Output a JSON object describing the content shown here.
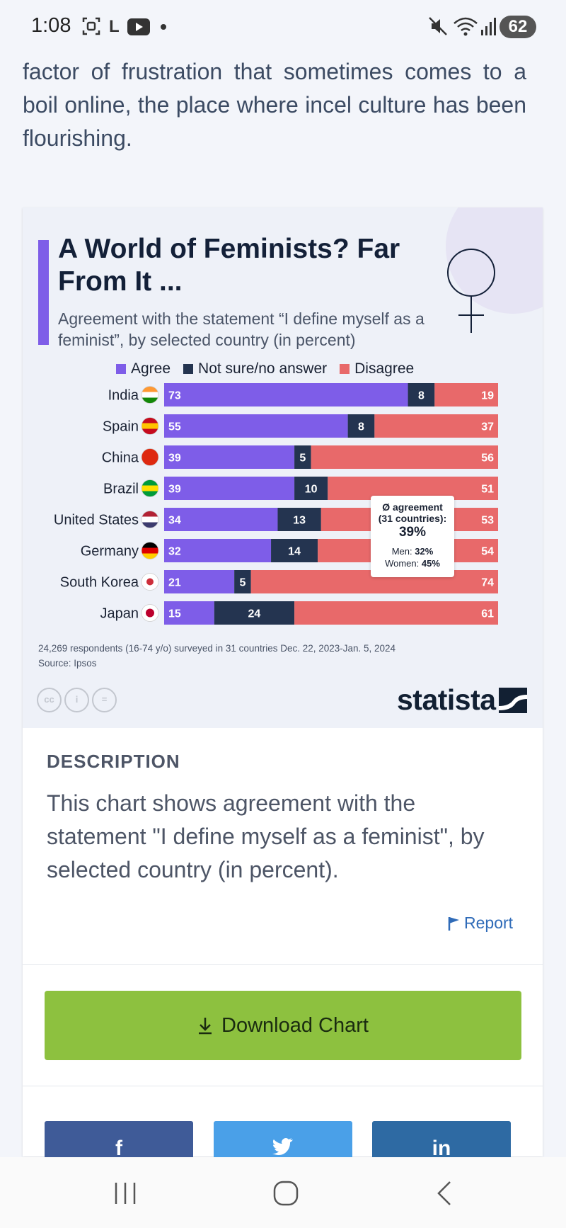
{
  "status_bar": {
    "time": "1:08",
    "battery": "62",
    "letter_icon": "L"
  },
  "article": {
    "text": "factor of frustration that sometimes comes to a boil online, the place where incel culture has been flourishing."
  },
  "infographic": {
    "title": "A World of Feminists? Far From It ...",
    "subtitle": "Agreement with the statement “I define myself as a feminist”, by selected country (in percent)",
    "callout": {
      "label": "Ø agreement",
      "sub": "(31 countries):",
      "value": "39%",
      "men_label": "Men:",
      "men_value": "32%",
      "women_label": "Women:",
      "women_value": "45%"
    },
    "footnote_1": "24,269 respondents (16-74 y/o) surveyed in 31 countries Dec. 22, 2023-Jan. 5, 2024",
    "footnote_2": "Source: Ipsos",
    "cc_icons": [
      "cc",
      "i",
      "="
    ],
    "logo_text": "statista"
  },
  "chart_data": {
    "type": "bar",
    "orientation": "horizontal",
    "stacked": true,
    "title": "A World of Feminists? Far From It ...",
    "subtitle": "Agreement with the statement “I define myself as a feminist”, by selected country (in percent)",
    "categories": [
      "India",
      "Spain",
      "China",
      "Brazil",
      "United States",
      "Germany",
      "South Korea",
      "Japan"
    ],
    "series": [
      {
        "name": "Agree",
        "color": "#7e5de8",
        "values": [
          73,
          55,
          39,
          39,
          34,
          32,
          21,
          15
        ]
      },
      {
        "name": "Not sure/no answer",
        "color": "#243450",
        "values": [
          8,
          8,
          5,
          10,
          13,
          14,
          5,
          24
        ]
      },
      {
        "name": "Disagree",
        "color": "#e8696a",
        "values": [
          19,
          37,
          56,
          51,
          53,
          54,
          74,
          61
        ]
      }
    ],
    "xlim": [
      0,
      100
    ],
    "legend": "top"
  },
  "description": {
    "heading": "DESCRIPTION",
    "text": "This chart shows agreement with the statement \"I define myself as a feminist\", by selected country (in percent).",
    "report_label": "Report"
  },
  "download": {
    "label": "Download Chart"
  },
  "share": {
    "facebook": "f",
    "linkedin": "in"
  }
}
